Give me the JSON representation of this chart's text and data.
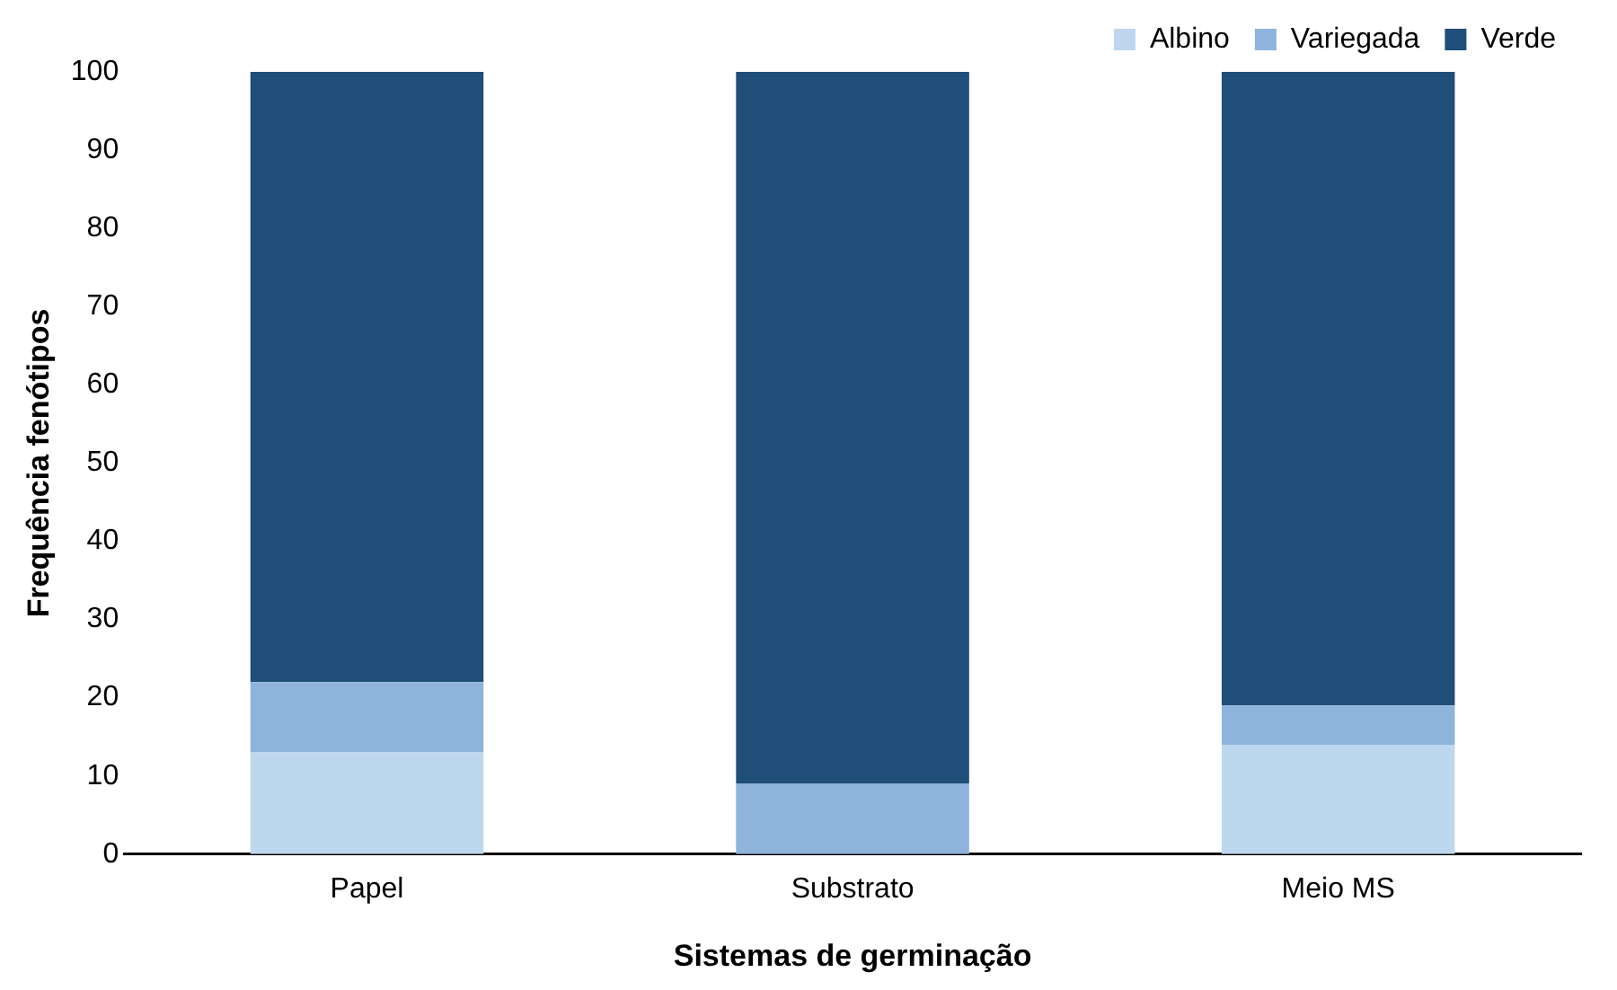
{
  "chart_data": {
    "type": "bar",
    "stacked": true,
    "xlabel": "Sistemas de germinação",
    "ylabel": "Frequência fenótipos",
    "categories": [
      "Papel",
      "Substrato",
      "Meio MS"
    ],
    "series": [
      {
        "name": "Albino",
        "color": "#bdd7ee",
        "values": [
          13,
          0,
          14
        ]
      },
      {
        "name": "Variegada",
        "color": "#8fb4dc",
        "values": [
          9,
          9,
          5
        ]
      },
      {
        "name": "Verde",
        "color": "#1f4e79",
        "values": [
          78,
          91,
          81
        ]
      }
    ],
    "ylim": [
      0,
      100
    ],
    "yticks": [
      0,
      10,
      20,
      30,
      40,
      50,
      60,
      70,
      80,
      90,
      100
    ],
    "grid": false,
    "legend": "top right"
  }
}
